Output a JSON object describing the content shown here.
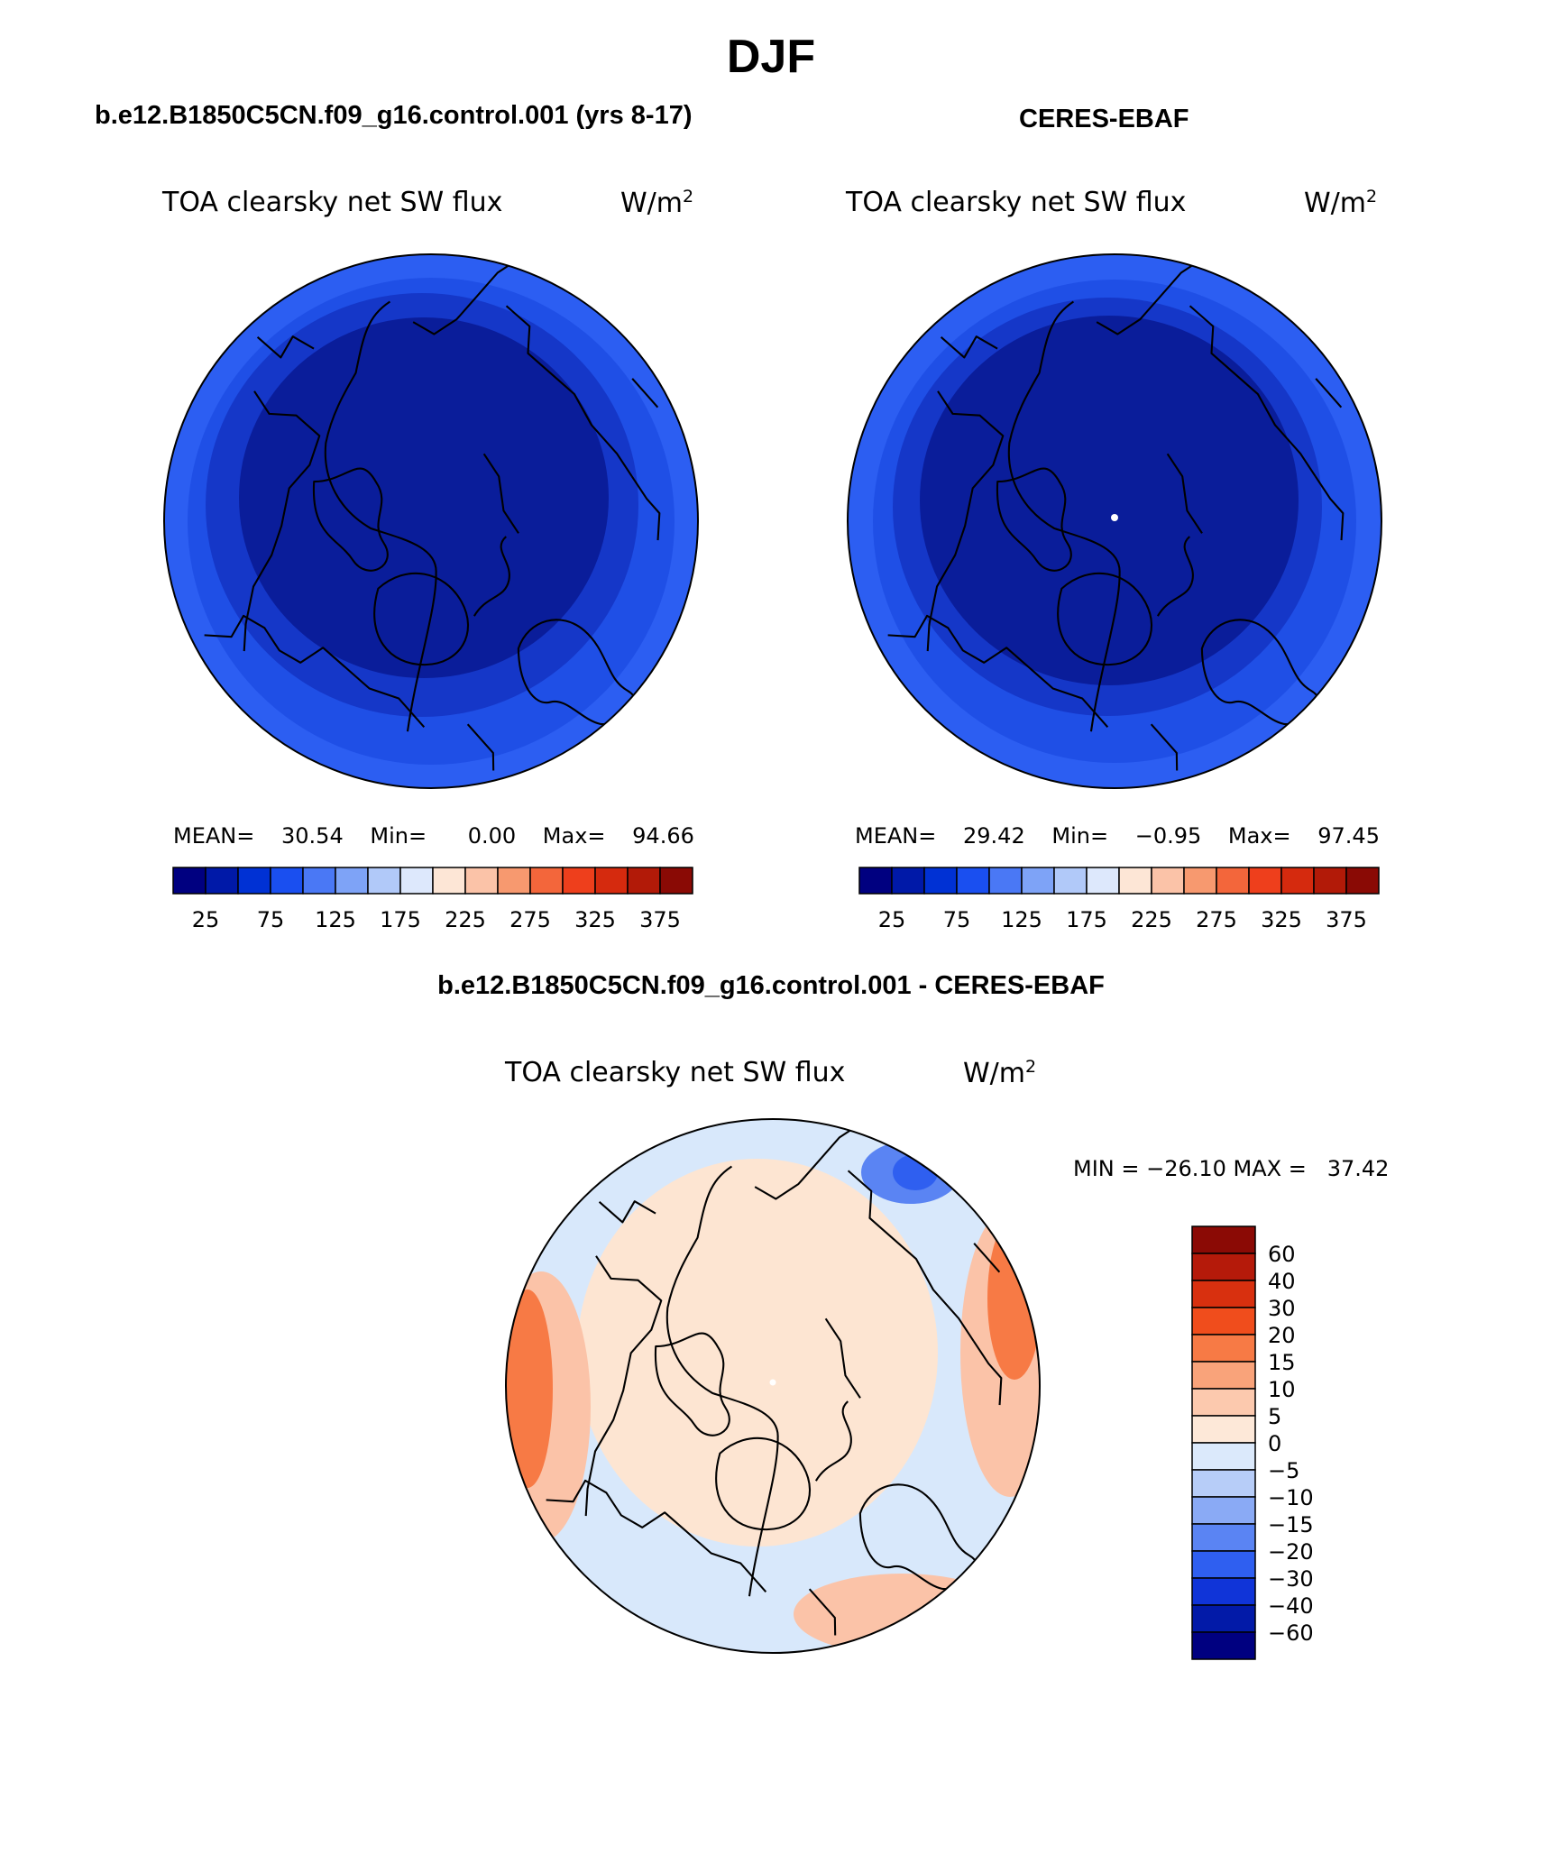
{
  "main_title": "DJF",
  "panels": [
    {
      "heading": "b.e12.B1850C5CN.f09_g16.control.001 (yrs 8-17)",
      "variable": "TOA clearsky net SW flux",
      "units": "W/m",
      "units_exp": "2",
      "stats": {
        "mean_label": "MEAN=",
        "mean": "30.54",
        "min_label": "Min=",
        "min": "0.00",
        "max_label": "Max=",
        "max": "94.66"
      }
    },
    {
      "heading": "CERES-EBAF",
      "variable": "TOA clearsky net SW flux",
      "units": "W/m",
      "units_exp": "2",
      "stats": {
        "mean_label": "MEAN=",
        "mean": "29.42",
        "min_label": "Min=",
        "min": "−0.95",
        "max_label": "Max=",
        "max": "97.45"
      }
    }
  ],
  "abs_colorbar": {
    "labels": [
      "25",
      "75",
      "125",
      "175",
      "225",
      "275",
      "325",
      "375"
    ],
    "colors": [
      "#000080",
      "#0019a8",
      "#0031d4",
      "#1a4ff0",
      "#4a78f5",
      "#7ea3f7",
      "#b1c9f9",
      "#dde8fc",
      "#fde6d6",
      "#fbc3a8",
      "#f7996f",
      "#f3663b",
      "#ee3f1c",
      "#d52a0e",
      "#b21a08",
      "#8a0a05"
    ]
  },
  "diff": {
    "heading": "b.e12.B1850C5CN.f09_g16.control.001 - CERES-EBAF",
    "variable": "TOA clearsky net SW flux",
    "units": "W/m",
    "units_exp": "2",
    "range_text": "MIN = −26.10 MAX =   37.42",
    "colorbar": {
      "labels": [
        "60",
        "40",
        "30",
        "20",
        "15",
        "10",
        "5",
        "0",
        "−5",
        "−10",
        "−15",
        "−20",
        "−30",
        "−40",
        "−60"
      ],
      "colors": [
        "#8b0a05",
        "#b51a0a",
        "#d8300f",
        "#f04d1c",
        "#f77a45",
        "#f9a37a",
        "#fcc9ae",
        "#fde8d8",
        "#dbe9fb",
        "#b7cdf8",
        "#8aaaf5",
        "#5a84f3",
        "#2f5ff0",
        "#1034d8",
        "#021aa8",
        "#000080"
      ]
    }
  },
  "colors": {
    "deep_blue": "#0a1d9a",
    "mid_blue": "#1537c8",
    "blue": "#1f4fe6",
    "light_blue": "#2c5ef2",
    "diff_background": "#d8e8fb",
    "diff_warm": "#fde5d2"
  }
}
